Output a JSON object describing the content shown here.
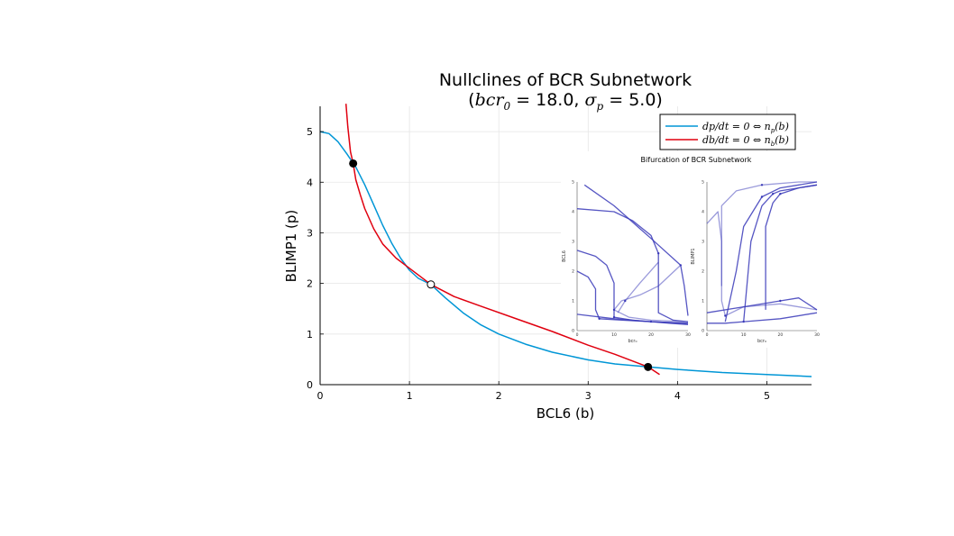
{
  "chart_data": {
    "type": "line",
    "title": "Nullclines of BCR Subnetwork",
    "subtitle_parts": {
      "open": "(",
      "bcr_sym": "bcr",
      "bcr_sub": "0",
      "eq1": " = ",
      "bcr_val": "18.0, ",
      "sigma_sym": "σ",
      "sigma_sub": "p",
      "eq2": " = ",
      "sigma_val": "5.0)"
    },
    "xlabel": "BCL6 (b)",
    "ylabel": "BLIMP1 (p)",
    "xlim": [
      0,
      5.5
    ],
    "ylim": [
      0,
      5.5
    ],
    "xticks": [
      "0",
      "1",
      "2",
      "3",
      "4",
      "5"
    ],
    "yticks": [
      "0",
      "1",
      "2",
      "3",
      "4",
      "5"
    ],
    "grid": true,
    "legend_position": "top-right",
    "series": [
      {
        "name": "dp/dt = 0 ⇔ n_p(b)",
        "legend_text": "dp/dt = 0 ⇔ n",
        "legend_sub": "p",
        "legend_tail": "(b)",
        "color": "#0096d6",
        "x": [
          0.0,
          0.1,
          0.2,
          0.3,
          0.4,
          0.5,
          0.6,
          0.7,
          0.8,
          0.9,
          1.0,
          1.1,
          1.24,
          1.4,
          1.6,
          1.8,
          2.0,
          2.3,
          2.6,
          3.0,
          3.3,
          3.67,
          4.0,
          4.5,
          5.0,
          5.5
        ],
        "y": [
          5.0,
          4.96,
          4.8,
          4.56,
          4.3,
          3.95,
          3.55,
          3.15,
          2.8,
          2.5,
          2.26,
          2.1,
          1.98,
          1.72,
          1.42,
          1.18,
          1.0,
          0.8,
          0.64,
          0.49,
          0.41,
          0.35,
          0.3,
          0.24,
          0.2,
          0.16
        ]
      },
      {
        "name": "db/dt = 0 ⇔ n_b(b)",
        "legend_text": "db/dt = 0 ⇔ n",
        "legend_sub": "b",
        "legend_tail": "(b)",
        "color": "#e0000f",
        "x": [
          0.29,
          0.31,
          0.34,
          0.37,
          0.4,
          0.45,
          0.5,
          0.6,
          0.7,
          0.85,
          1.0,
          1.24,
          1.5,
          1.8,
          2.2,
          2.6,
          3.0,
          3.3,
          3.67,
          3.8
        ],
        "y": [
          5.55,
          5.1,
          4.6,
          4.37,
          4.05,
          3.75,
          3.48,
          3.08,
          2.78,
          2.5,
          2.3,
          1.98,
          1.74,
          1.55,
          1.3,
          1.05,
          0.78,
          0.6,
          0.35,
          0.2
        ]
      }
    ],
    "points": [
      {
        "x": 0.37,
        "y": 4.37,
        "style": "filled"
      },
      {
        "x": 1.24,
        "y": 1.98,
        "style": "open"
      },
      {
        "x": 3.67,
        "y": 0.35,
        "style": "filled"
      }
    ],
    "inset": {
      "title": "Bifurcation of BCR Subnetwork",
      "color": "#3838b8",
      "xlim": [
        0,
        30
      ],
      "ylim": [
        0,
        5
      ],
      "xticks": [
        "0",
        "10",
        "20",
        "30"
      ],
      "yticks": [
        "0",
        "1",
        "2",
        "3",
        "4",
        "5"
      ],
      "panels": [
        {
          "xlabel": "bcr₀",
          "ylabel": "BCL6",
          "curves": [
            {
              "x": [
                2,
                10,
                20,
                28,
                29,
                30
              ],
              "y": [
                4.9,
                4.2,
                3.1,
                2.2,
                1.5,
                0.5
              ]
            },
            {
              "x": [
                0,
                10,
                15,
                20,
                22,
                22,
                22,
                26,
                30
              ],
              "y": [
                4.1,
                4.0,
                3.7,
                3.2,
                2.6,
                1.4,
                0.6,
                0.35,
                0.3
              ]
            },
            {
              "x": [
                0,
                5,
                8,
                10,
                10,
                10,
                15,
                20,
                25,
                30
              ],
              "y": [
                2.7,
                2.5,
                2.2,
                1.6,
                0.8,
                0.45,
                0.35,
                0.3,
                0.25,
                0.2
              ]
            },
            {
              "x": [
                0,
                3,
                5,
                5,
                6,
                12,
                20,
                30
              ],
              "y": [
                2.0,
                1.8,
                1.4,
                0.7,
                0.4,
                0.35,
                0.3,
                0.25
              ]
            },
            {
              "x": [
                0,
                10,
                20,
                30
              ],
              "y": [
                0.55,
                0.4,
                0.3,
                0.25
              ]
            },
            {
              "x": [
                28,
                22,
                17,
                12,
                10,
                14,
                20,
                30
              ],
              "y": [
                2.2,
                1.5,
                1.2,
                1.0,
                0.7,
                0.45,
                0.35,
                0.3
              ]
            },
            {
              "x": [
                22,
                17,
                13,
                11
              ],
              "y": [
                2.3,
                1.6,
                1.0,
                0.6
              ]
            }
          ]
        },
        {
          "xlabel": "bcr₀",
          "ylabel": "BLIMP1",
          "curves": [
            {
              "x": [
                0,
                5,
                10,
                20,
                30
              ],
              "y": [
                0.25,
                0.25,
                0.3,
                0.4,
                0.6
              ]
            },
            {
              "x": [
                0,
                10,
                20,
                25,
                30
              ],
              "y": [
                0.6,
                0.8,
                1.0,
                1.1,
                0.7
              ]
            },
            {
              "x": [
                5,
                8,
                10,
                15,
                20,
                25,
                30
              ],
              "y": [
                0.3,
                2.0,
                3.5,
                4.5,
                4.8,
                4.9,
                5.0
              ]
            },
            {
              "x": [
                10,
                12,
                15,
                18,
                20,
                25,
                30
              ],
              "y": [
                0.3,
                3.0,
                4.2,
                4.6,
                4.7,
                4.8,
                4.9
              ]
            },
            {
              "x": [
                16,
                16,
                18,
                20,
                25,
                30
              ],
              "y": [
                0.7,
                3.5,
                4.3,
                4.6,
                4.8,
                4.9
              ]
            },
            {
              "x": [
                0,
                3,
                4,
                4,
                5,
                10,
                20,
                30
              ],
              "y": [
                3.6,
                4.0,
                3.0,
                1.0,
                0.5,
                0.8,
                0.9,
                0.7
              ]
            },
            {
              "x": [
                4,
                4,
                8,
                15,
                25,
                30
              ],
              "y": [
                1.5,
                4.2,
                4.7,
                4.9,
                5.0,
                5.0
              ]
            }
          ]
        }
      ]
    }
  }
}
